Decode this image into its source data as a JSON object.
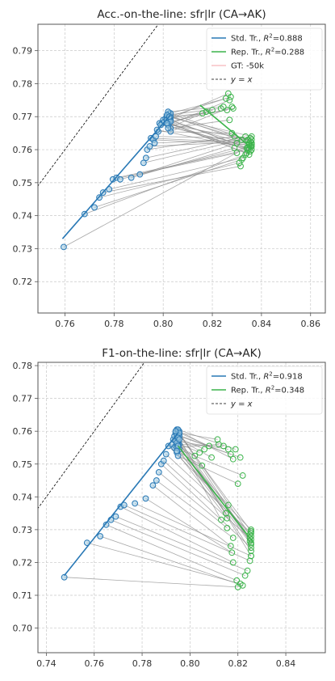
{
  "chart_data": [
    {
      "type": "scatter",
      "title": "Acc.-on-the-line: sfr|lr  (CA→AK)",
      "xlim": [
        0.749,
        0.866
      ],
      "ylim": [
        0.7105,
        0.798
      ],
      "xticks": [
        "0.76",
        "0.78",
        "0.80",
        "0.82",
        "0.84",
        "0.86"
      ],
      "yticks": [
        "0.72",
        "0.73",
        "0.74",
        "0.75",
        "0.76",
        "0.77",
        "0.78",
        "0.79"
      ],
      "xtick_values": [
        0.76,
        0.78,
        0.8,
        0.82,
        0.84,
        0.86
      ],
      "ytick_values": [
        0.72,
        0.73,
        0.74,
        0.75,
        0.76,
        0.77,
        0.78,
        0.79
      ],
      "grid": true,
      "legend_position": "top-right",
      "legend": [
        {
          "label": "Std. Tr., R²=0.888",
          "prefix": "Std. Tr., ",
          "r2": "=0.888",
          "style": "line",
          "color": "#2878b5"
        },
        {
          "label": "Rep. Tr., R²=0.288",
          "prefix": "Rep. Tr., ",
          "r2": "=0.288",
          "style": "line",
          "color": "#3cb44b"
        },
        {
          "label": "GT: -50k",
          "prefix": "GT: -50k",
          "r2": "",
          "style": "line",
          "color": "#f4a3a8"
        },
        {
          "label": "y = x",
          "prefix": "",
          "r2": "",
          "style": "dashed",
          "color": "#000000"
        }
      ],
      "diagonal": true,
      "std_fit": {
        "x": [
          0.759,
          0.803
        ],
        "y": [
          0.733,
          0.7705
        ]
      },
      "rep_fit": {
        "x": [
          0.815,
          0.836
        ],
        "y": [
          0.7735,
          0.7605
        ]
      },
      "pairs": [
        {
          "std": [
            0.7595,
            0.7305
          ],
          "rep": [
            0.836,
            0.7615
          ]
        },
        {
          "std": [
            0.768,
            0.7405
          ],
          "rep": [
            0.8335,
            0.7585
          ]
        },
        {
          "std": [
            0.772,
            0.7425
          ],
          "rep": [
            0.832,
            0.757
          ]
        },
        {
          "std": [
            0.774,
            0.7455
          ],
          "rep": [
            0.831,
            0.756
          ]
        },
        {
          "std": [
            0.7755,
            0.747
          ],
          "rep": [
            0.8315,
            0.755
          ]
        },
        {
          "std": [
            0.778,
            0.748
          ],
          "rep": [
            0.8325,
            0.7575
          ]
        },
        {
          "std": [
            0.7795,
            0.751
          ],
          "rep": [
            0.83,
            0.759
          ]
        },
        {
          "std": [
            0.781,
            0.7515
          ],
          "rep": [
            0.8345,
            0.76
          ]
        },
        {
          "std": [
            0.7825,
            0.751
          ],
          "rep": [
            0.8355,
            0.761
          ]
        },
        {
          "std": [
            0.787,
            0.7515
          ],
          "rep": [
            0.829,
            0.7605
          ]
        },
        {
          "std": [
            0.7905,
            0.7525
          ],
          "rep": [
            0.83,
            0.762
          ]
        },
        {
          "std": [
            0.792,
            0.756
          ],
          "rep": [
            0.832,
            0.763
          ]
        },
        {
          "std": [
            0.793,
            0.7575
          ],
          "rep": [
            0.8335,
            0.764
          ]
        },
        {
          "std": [
            0.7935,
            0.76
          ],
          "rep": [
            0.829,
            0.764
          ]
        },
        {
          "std": [
            0.7945,
            0.761
          ],
          "rep": [
            0.8355,
            0.7625
          ]
        },
        {
          "std": [
            0.795,
            0.7635
          ],
          "rep": [
            0.836,
            0.762
          ]
        },
        {
          "std": [
            0.796,
            0.763
          ],
          "rep": [
            0.835,
            0.7615
          ]
        },
        {
          "std": [
            0.7965,
            0.762
          ],
          "rep": [
            0.8345,
            0.763
          ]
        },
        {
          "std": [
            0.797,
            0.764
          ],
          "rep": [
            0.8355,
            0.7635
          ]
        },
        {
          "std": [
            0.798,
            0.7655
          ],
          "rep": [
            0.828,
            0.765
          ]
        },
        {
          "std": [
            0.7975,
            0.766
          ],
          "rep": [
            0.834,
            0.7605
          ]
        },
        {
          "std": [
            0.7985,
            0.768
          ],
          "rep": [
            0.835,
            0.76
          ]
        },
        {
          "std": [
            0.7995,
            0.768
          ],
          "rep": [
            0.836,
            0.763
          ]
        },
        {
          "std": [
            0.799,
            0.7675
          ],
          "rep": [
            0.836,
            0.761
          ]
        },
        {
          "std": [
            0.8,
            0.769
          ],
          "rep": [
            0.835,
            0.7585
          ]
        },
        {
          "std": [
            0.8005,
            0.7685
          ],
          "rep": [
            0.8355,
            0.7595
          ]
        },
        {
          "std": [
            0.801,
            0.7695
          ],
          "rep": [
            0.8345,
            0.7605
          ]
        },
        {
          "std": [
            0.8015,
            0.77
          ],
          "rep": [
            0.836,
            0.764
          ]
        },
        {
          "std": [
            0.802,
            0.7705
          ],
          "rep": [
            0.835,
            0.762
          ]
        },
        {
          "std": [
            0.8025,
            0.771
          ],
          "rep": [
            0.8345,
            0.763
          ]
        },
        {
          "std": [
            0.803,
            0.77
          ],
          "rep": [
            0.8355,
            0.7625
          ]
        },
        {
          "std": [
            0.803,
            0.769
          ],
          "rep": [
            0.836,
            0.76
          ]
        },
        {
          "std": [
            0.8025,
            0.7685
          ],
          "rep": [
            0.835,
            0.7615
          ]
        },
        {
          "std": [
            0.802,
            0.768
          ],
          "rep": [
            0.834,
            0.759
          ]
        },
        {
          "std": [
            0.803,
            0.7665
          ],
          "rep": [
            0.827,
            0.769
          ]
        },
        {
          "std": [
            0.803,
            0.7655
          ],
          "rep": [
            0.828,
            0.773
          ]
        },
        {
          "std": [
            0.802,
            0.7675
          ],
          "rep": [
            0.827,
            0.775
          ]
        },
        {
          "std": [
            0.8015,
            0.769
          ],
          "rep": [
            0.8265,
            0.777
          ]
        },
        {
          "std": [
            0.8025,
            0.77
          ],
          "rep": [
            0.8275,
            0.776
          ]
        },
        {
          "std": [
            0.803,
            0.771
          ],
          "rep": [
            0.8255,
            0.7755
          ]
        },
        {
          "std": [
            0.802,
            0.7715
          ],
          "rep": [
            0.8245,
            0.773
          ]
        },
        {
          "std": [
            0.8015,
            0.7705
          ],
          "rep": [
            0.8235,
            0.7725
          ]
        },
        {
          "std": [
            0.8025,
            0.7695
          ],
          "rep": [
            0.826,
            0.772
          ]
        },
        {
          "std": [
            0.803,
            0.7685
          ],
          "rep": [
            0.8285,
            0.7725
          ]
        },
        {
          "std": [
            0.8015,
            0.768
          ],
          "rep": [
            0.82,
            0.772
          ]
        },
        {
          "std": [
            0.802,
            0.7665
          ],
          "rep": [
            0.8175,
            0.7715
          ]
        },
        {
          "std": [
            0.8025,
            0.77
          ],
          "rep": [
            0.816,
            0.771
          ]
        }
      ]
    },
    {
      "type": "scatter",
      "title": "F1-on-the-line: sfr|lr  (CA→AK)",
      "xlim": [
        0.7365,
        0.8565
      ],
      "ylim": [
        0.6925,
        0.781
      ],
      "xticks": [
        "0.74",
        "0.76",
        "0.78",
        "0.80",
        "0.82",
        "0.84"
      ],
      "yticks": [
        "0.70",
        "0.71",
        "0.72",
        "0.73",
        "0.74",
        "0.75",
        "0.76",
        "0.77",
        "0.78"
      ],
      "xtick_values": [
        0.74,
        0.76,
        0.78,
        0.8,
        0.82,
        0.84
      ],
      "ytick_values": [
        0.7,
        0.71,
        0.72,
        0.73,
        0.74,
        0.75,
        0.76,
        0.77,
        0.78
      ],
      "grid": true,
      "legend_position": "top-right",
      "legend": [
        {
          "label": "Std. Tr., R²=0.918",
          "prefix": "Std. Tr., ",
          "r2": "=0.918",
          "style": "line",
          "color": "#2878b5"
        },
        {
          "label": "Rep. Tr., R²=0.348",
          "prefix": "Rep. Tr., ",
          "r2": "=0.348",
          "style": "line",
          "color": "#3cb44b"
        },
        {
          "label": "y = x",
          "prefix": "",
          "r2": "",
          "style": "dashed",
          "color": "#000000"
        }
      ],
      "diagonal": true,
      "std_fit": {
        "x": [
          0.7475,
          0.795
        ],
        "y": [
          0.716,
          0.7595
        ]
      },
      "rep_fit": {
        "x": [
          0.795,
          0.826
        ],
        "y": [
          0.7555,
          0.7265
        ]
      },
      "pairs": [
        {
          "std": [
            0.7475,
            0.7155
          ],
          "rep": [
            0.82,
            0.7125
          ]
        },
        {
          "std": [
            0.757,
            0.726
          ],
          "rep": [
            0.821,
            0.7135
          ]
        },
        {
          "std": [
            0.7625,
            0.728
          ],
          "rep": [
            0.822,
            0.713
          ]
        },
        {
          "std": [
            0.765,
            0.7315
          ],
          "rep": [
            0.8195,
            0.7145
          ]
        },
        {
          "std": [
            0.767,
            0.733
          ],
          "rep": [
            0.823,
            0.716
          ]
        },
        {
          "std": [
            0.769,
            0.734
          ],
          "rep": [
            0.824,
            0.7175
          ]
        },
        {
          "std": [
            0.771,
            0.737
          ],
          "rep": [
            0.818,
            0.72
          ]
        },
        {
          "std": [
            0.7725,
            0.7375
          ],
          "rep": [
            0.825,
            0.7205
          ]
        },
        {
          "std": [
            0.777,
            0.738
          ],
          "rep": [
            0.8255,
            0.722
          ]
        },
        {
          "std": [
            0.7815,
            0.7395
          ],
          "rep": [
            0.8175,
            0.723
          ]
        },
        {
          "std": [
            0.7845,
            0.7435
          ],
          "rep": [
            0.817,
            0.725
          ]
        },
        {
          "std": [
            0.786,
            0.745
          ],
          "rep": [
            0.818,
            0.7275
          ]
        },
        {
          "std": [
            0.787,
            0.7475
          ],
          "rep": [
            0.8155,
            0.7305
          ]
        },
        {
          "std": [
            0.788,
            0.75
          ],
          "rep": [
            0.8255,
            0.7245
          ]
        },
        {
          "std": [
            0.789,
            0.751
          ],
          "rep": [
            0.8255,
            0.727
          ]
        },
        {
          "std": [
            0.79,
            0.753
          ],
          "rep": [
            0.8255,
            0.729
          ]
        },
        {
          "std": [
            0.791,
            0.7555
          ],
          "rep": [
            0.8255,
            0.73
          ]
        },
        {
          "std": [
            0.7925,
            0.756
          ],
          "rep": [
            0.825,
            0.7285
          ]
        },
        {
          "std": [
            0.793,
            0.7575
          ],
          "rep": [
            0.8255,
            0.7255
          ]
        },
        {
          "std": [
            0.7935,
            0.7585
          ],
          "rep": [
            0.8255,
            0.7235
          ]
        },
        {
          "std": [
            0.794,
            0.7595
          ],
          "rep": [
            0.8255,
            0.722
          ]
        },
        {
          "std": [
            0.7945,
            0.7605
          ],
          "rep": [
            0.825,
            0.7265
          ]
        },
        {
          "std": [
            0.795,
            0.76
          ],
          "rep": [
            0.8255,
            0.728
          ]
        },
        {
          "std": [
            0.7955,
            0.759
          ],
          "rep": [
            0.8255,
            0.7295
          ]
        },
        {
          "std": [
            0.7945,
            0.758
          ],
          "rep": [
            0.825,
            0.7275
          ]
        },
        {
          "std": [
            0.795,
            0.757
          ],
          "rep": [
            0.8255,
            0.726
          ]
        },
        {
          "std": [
            0.7955,
            0.756
          ],
          "rep": [
            0.813,
            0.733
          ]
        },
        {
          "std": [
            0.794,
            0.7555
          ],
          "rep": [
            0.815,
            0.735
          ]
        },
        {
          "std": [
            0.7955,
            0.7545
          ],
          "rep": [
            0.816,
            0.7375
          ]
        },
        {
          "std": [
            0.7945,
            0.7535
          ],
          "rep": [
            0.8155,
            0.7335
          ]
        },
        {
          "std": [
            0.795,
            0.7525
          ],
          "rep": [
            0.82,
            0.744
          ]
        },
        {
          "std": [
            0.7935,
            0.755
          ],
          "rep": [
            0.822,
            0.7465
          ]
        },
        {
          "std": [
            0.7955,
            0.76
          ],
          "rep": [
            0.818,
            0.7515
          ]
        },
        {
          "std": [
            0.795,
            0.7605
          ],
          "rep": [
            0.819,
            0.7545
          ]
        },
        {
          "std": [
            0.7945,
            0.759
          ],
          "rep": [
            0.817,
            0.753
          ]
        },
        {
          "std": [
            0.794,
            0.757
          ],
          "rep": [
            0.816,
            0.7545
          ]
        },
        {
          "std": [
            0.7955,
            0.7585
          ],
          "rep": [
            0.821,
            0.752
          ]
        },
        {
          "std": [
            0.795,
            0.756
          ],
          "rep": [
            0.814,
            0.7555
          ]
        },
        {
          "std": [
            0.7945,
            0.755
          ],
          "rep": [
            0.812,
            0.756
          ]
        },
        {
          "std": [
            0.7955,
            0.7595
          ],
          "rep": [
            0.8115,
            0.7575
          ]
        },
        {
          "std": [
            0.794,
            0.76
          ],
          "rep": [
            0.808,
            0.7555
          ]
        },
        {
          "std": [
            0.795,
            0.758
          ],
          "rep": [
            0.806,
            0.7545
          ]
        },
        {
          "std": [
            0.7945,
            0.7565
          ],
          "rep": [
            0.804,
            0.7535
          ]
        },
        {
          "std": [
            0.7955,
            0.7575
          ],
          "rep": [
            0.809,
            0.752
          ]
        },
        {
          "std": [
            0.795,
            0.7555
          ],
          "rep": [
            0.802,
            0.7525
          ]
        },
        {
          "std": [
            0.7945,
            0.754
          ],
          "rep": [
            0.805,
            0.7495
          ]
        }
      ]
    }
  ]
}
